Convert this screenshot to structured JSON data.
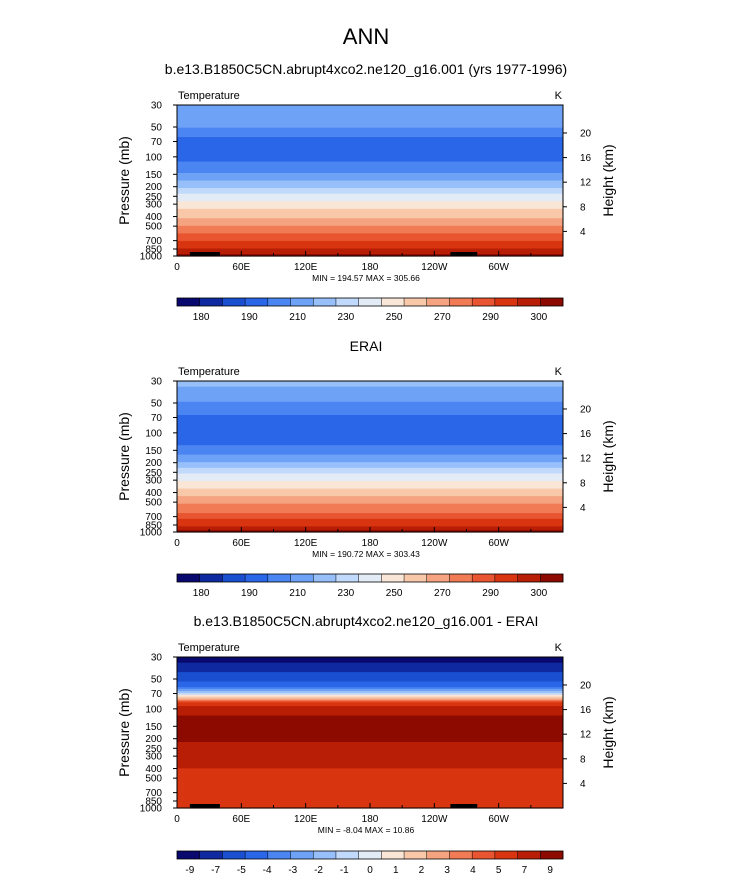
{
  "figure_title": "ANN",
  "panels": [
    {
      "title": "b.e13.B1850C5CN.abrupt4xco2.ne120_g16.001 (yrs 1977-1996)",
      "left_label": "Temperature",
      "right_label": "K",
      "minmax": "MIN = 194.57  MAX = 305.66"
    },
    {
      "title": "ERAI",
      "left_label": "Temperature",
      "right_label": "K",
      "minmax": "MIN = 190.72  MAX = 303.43"
    },
    {
      "title": "b.e13.B1850C5CN.abrupt4xco2.ne120_g16.001 - ERAI",
      "left_label": "Temperature",
      "right_label": "K",
      "minmax": "MIN = -8.04  MAX = 10.86"
    }
  ],
  "chart_data": [
    {
      "type": "heatmap",
      "ylabel": "Pressure (mb)",
      "y2label": "Height (km)",
      "y_scale": "log",
      "ylim": [
        1000,
        30
      ],
      "y_ticks": [
        30,
        50,
        70,
        100,
        150,
        200,
        250,
        300,
        400,
        500,
        700,
        850,
        1000
      ],
      "y2_ticks": [
        20,
        16,
        12,
        8,
        4
      ],
      "x_ticks": [
        "0",
        "60E",
        "120E",
        "180",
        "120W",
        "60W"
      ],
      "x_tick_lons": [
        0,
        60,
        120,
        180,
        240,
        300
      ],
      "xlim": [
        0,
        360
      ],
      "colorbar_labels": [
        "180",
        "190",
        "210",
        "230",
        "250",
        "270",
        "290",
        "300"
      ],
      "colors": [
        "#08086e",
        "#0f2aa0",
        "#1a4fd0",
        "#2a66e8",
        "#4a85f2",
        "#6ea2f7",
        "#97bff9",
        "#c1d9fb",
        "#e3ecf6",
        "#fae6d6",
        "#f8c8a8",
        "#f5a380",
        "#f07b55",
        "#e85530",
        "#d83510",
        "#b81e05",
        "#8c0a00"
      ],
      "level_profile": [
        {
          "p": 30,
          "level": 5
        },
        {
          "p": 45,
          "level": 5
        },
        {
          "p": 55,
          "level": 4
        },
        {
          "p": 70,
          "level": 3
        },
        {
          "p": 100,
          "level": 3
        },
        {
          "p": 130,
          "level": 4
        },
        {
          "p": 160,
          "level": 5
        },
        {
          "p": 190,
          "level": 6
        },
        {
          "p": 220,
          "level": 7
        },
        {
          "p": 260,
          "level": 8
        },
        {
          "p": 310,
          "level": 9
        },
        {
          "p": 370,
          "level": 10
        },
        {
          "p": 450,
          "level": 11
        },
        {
          "p": 550,
          "level": 12
        },
        {
          "p": 660,
          "level": 13
        },
        {
          "p": 780,
          "level": 14
        },
        {
          "p": 900,
          "level": 15
        },
        {
          "p": 1000,
          "level": 16
        }
      ]
    },
    {
      "type": "heatmap",
      "ylabel": "Pressure (mb)",
      "y2label": "Height (km)",
      "y_scale": "log",
      "ylim": [
        1000,
        30
      ],
      "y_ticks": [
        30,
        50,
        70,
        100,
        150,
        200,
        250,
        300,
        400,
        500,
        700,
        850,
        1000
      ],
      "y2_ticks": [
        20,
        16,
        12,
        8,
        4
      ],
      "x_ticks": [
        "0",
        "60E",
        "120E",
        "180",
        "120W",
        "60W"
      ],
      "x_tick_lons": [
        0,
        60,
        120,
        180,
        240,
        300
      ],
      "xlim": [
        0,
        360
      ],
      "colorbar_labels": [
        "180",
        "190",
        "210",
        "230",
        "250",
        "270",
        "290",
        "300"
      ],
      "colors": [
        "#08086e",
        "#0f2aa0",
        "#1a4fd0",
        "#2a66e8",
        "#4a85f2",
        "#6ea2f7",
        "#97bff9",
        "#c1d9fb",
        "#e3ecf6",
        "#fae6d6",
        "#f8c8a8",
        "#f5a380",
        "#f07b55",
        "#e85530",
        "#d83510",
        "#b81e05",
        "#8c0a00"
      ],
      "level_profile": [
        {
          "p": 30,
          "level": 6
        },
        {
          "p": 40,
          "level": 5
        },
        {
          "p": 60,
          "level": 4
        },
        {
          "p": 75,
          "level": 3
        },
        {
          "p": 120,
          "level": 3
        },
        {
          "p": 150,
          "level": 4
        },
        {
          "p": 180,
          "level": 5
        },
        {
          "p": 210,
          "level": 6
        },
        {
          "p": 240,
          "level": 7
        },
        {
          "p": 280,
          "level": 8
        },
        {
          "p": 330,
          "level": 9
        },
        {
          "p": 400,
          "level": 10
        },
        {
          "p": 480,
          "level": 11
        },
        {
          "p": 580,
          "level": 12
        },
        {
          "p": 690,
          "level": 13
        },
        {
          "p": 800,
          "level": 14
        },
        {
          "p": 920,
          "level": 15
        },
        {
          "p": 1000,
          "level": 16
        }
      ]
    },
    {
      "type": "heatmap",
      "ylabel": "Pressure (mb)",
      "y2label": "Height (km)",
      "y_scale": "log",
      "ylim": [
        1000,
        30
      ],
      "y_ticks": [
        30,
        50,
        70,
        100,
        150,
        200,
        250,
        300,
        400,
        500,
        700,
        850,
        1000
      ],
      "y2_ticks": [
        20,
        16,
        12,
        8,
        4
      ],
      "x_ticks": [
        "0",
        "60E",
        "120E",
        "180",
        "120W",
        "60W"
      ],
      "x_tick_lons": [
        0,
        60,
        120,
        180,
        240,
        300
      ],
      "xlim": [
        0,
        360
      ],
      "colorbar_labels": [
        "-9",
        "-7",
        "-5",
        "-4",
        "-3",
        "-2",
        "-1",
        "0",
        "1",
        "2",
        "3",
        "4",
        "5",
        "7",
        "9"
      ],
      "colors": [
        "#08086e",
        "#0f2aa0",
        "#1a4fd0",
        "#2a66e8",
        "#4a85f2",
        "#6ea2f7",
        "#97bff9",
        "#c1d9fb",
        "#e3ecf6",
        "#fae6d6",
        "#f8c8a8",
        "#f5a380",
        "#f07b55",
        "#e85530",
        "#d83510",
        "#b81e05",
        "#8c0a00"
      ],
      "level_profile": [
        {
          "p": 30,
          "level": 0
        },
        {
          "p": 38,
          "level": 1
        },
        {
          "p": 48,
          "level": 2
        },
        {
          "p": 58,
          "level": 3
        },
        {
          "p": 66,
          "level": 5
        },
        {
          "p": 72,
          "level": 8
        },
        {
          "p": 78,
          "level": 10
        },
        {
          "p": 85,
          "level": 13
        },
        {
          "p": 95,
          "level": 15
        },
        {
          "p": 140,
          "level": 16
        },
        {
          "p": 330,
          "level": 15
        },
        {
          "p": 480,
          "level": 14
        },
        {
          "p": 1000,
          "level": 14
        }
      ]
    }
  ]
}
